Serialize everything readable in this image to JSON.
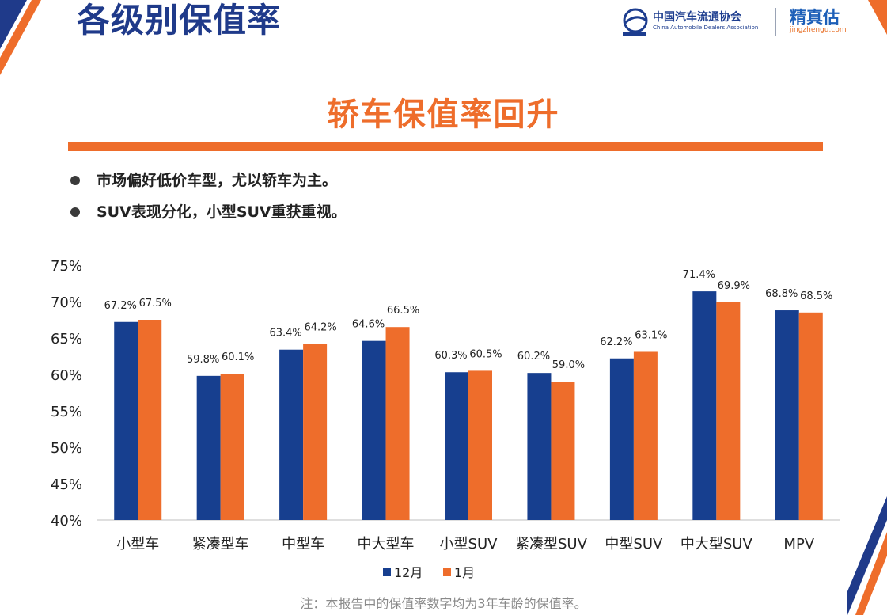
{
  "header": {
    "title": "各级别保值率",
    "logos": {
      "cada_name": "中国汽车流通协会",
      "cada_en": "China Automobile Dealers Association",
      "jzg_name": "精真估",
      "jzg_url": "jingzhengu.com"
    }
  },
  "headline": "轿车保值率回升",
  "bullets": [
    "市场偏好低价车型，尤以轿车为主。",
    "SUV表现分化，小型SUV重获重视。"
  ],
  "footnote": "注：本报告中的保值率数字均为3年车龄的保值率。",
  "colors": {
    "series_12": "#173f8f",
    "series_1": "#ee6d2b",
    "title_blue": "#1f3a8a",
    "accent_orange": "#ee6d2b"
  },
  "chart_data": {
    "type": "bar",
    "categories": [
      "小型车",
      "紧凑型车",
      "中型车",
      "中大型车",
      "小型SUV",
      "紧凑型SUV",
      "中型SUV",
      "中大型SUV",
      "MPV"
    ],
    "series": [
      {
        "name": "12月",
        "values": [
          67.2,
          59.8,
          63.4,
          64.6,
          60.3,
          60.2,
          62.2,
          71.4,
          68.8
        ],
        "labels": [
          "67.2%",
          "59.8%",
          "63.4%",
          "64.6%",
          "60.3%",
          "60.2%",
          "62.2%",
          "71.4%",
          "68.8%"
        ]
      },
      {
        "name": "1月",
        "values": [
          67.5,
          60.1,
          64.2,
          66.5,
          60.5,
          59.0,
          63.1,
          69.9,
          68.5
        ],
        "labels": [
          "67.5%",
          "60.1%",
          "64.2%",
          "66.5%",
          "60.5%",
          "59.0%",
          "63.1%",
          "69.9%",
          "68.5%"
        ]
      }
    ],
    "ylim": [
      40,
      75
    ],
    "yticks": [
      40,
      45,
      50,
      55,
      60,
      65,
      70,
      75
    ],
    "ytick_labels": [
      "40%",
      "45%",
      "50%",
      "55%",
      "60%",
      "65%",
      "70%",
      "75%"
    ],
    "legend": "bottom",
    "grid": false
  }
}
